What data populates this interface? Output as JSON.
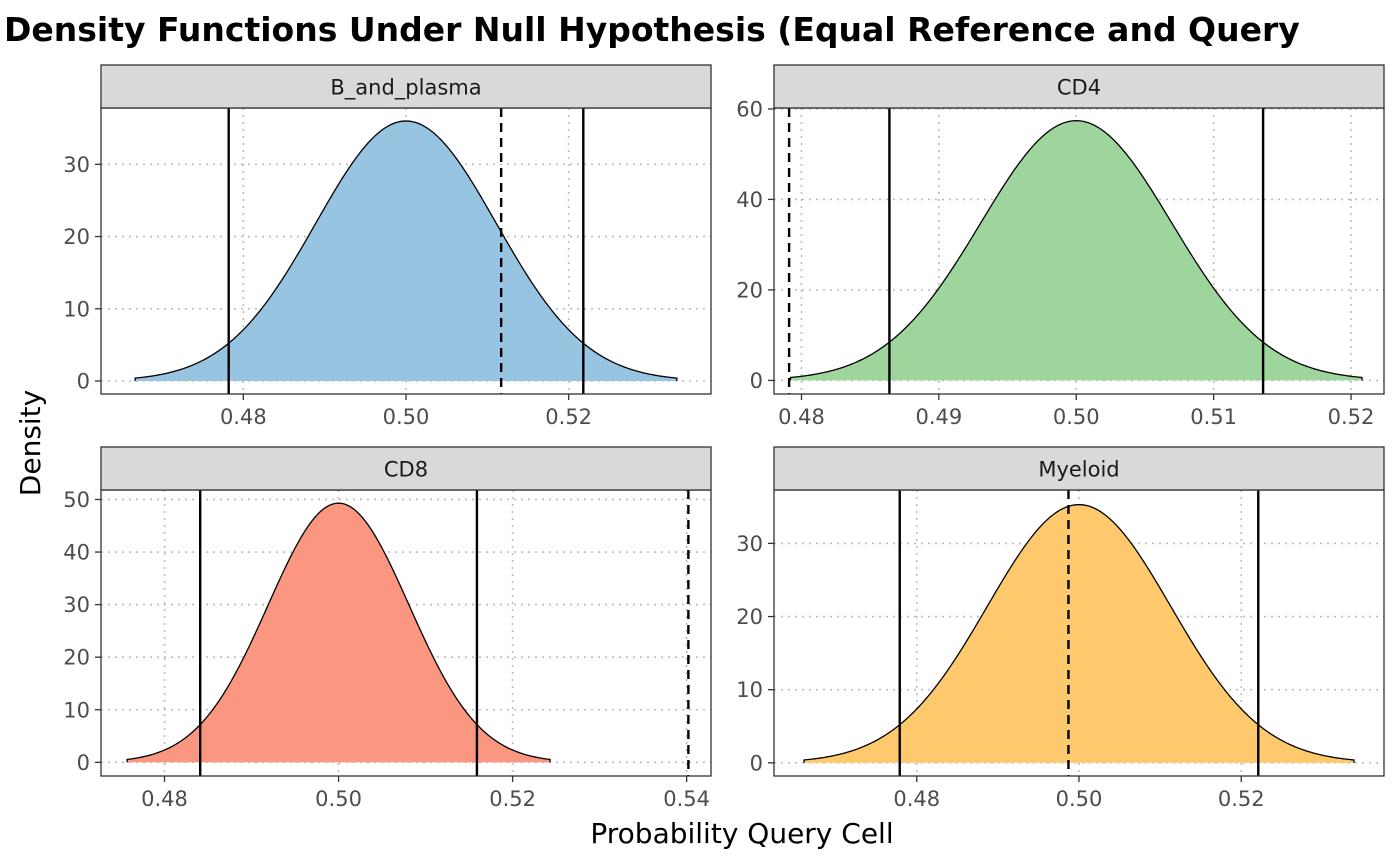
{
  "title": "Density Functions Under Null Hypothesis (Equal Reference and Query",
  "xlabel": "Probability Query Cell",
  "ylabel": "Density",
  "chart_data": [
    {
      "type": "area",
      "panel": "B_and_plasma",
      "fill_color": "#96c4e1",
      "distribution": {
        "mean": 0.5,
        "sd": 0.0111,
        "x_range": [
          0.4667,
          0.5333
        ]
      },
      "peak_density": 36,
      "xlim": [
        0.4625,
        0.5375
      ],
      "ylim": [
        -1.8,
        37.8
      ],
      "x_ticks": [
        0.48,
        0.5,
        0.52
      ],
      "x_tick_labels": [
        "0.48",
        "0.50",
        "0.52"
      ],
      "y_ticks": [
        0,
        10,
        20,
        30
      ],
      "y_tick_labels": [
        "0",
        "10",
        "20",
        "30"
      ],
      "solid_lines": [
        0.4782,
        0.5218
      ],
      "dashed_lines": [
        0.5117
      ]
    },
    {
      "type": "area",
      "panel": "CD4",
      "fill_color": "#9ed59c",
      "distribution": {
        "mean": 0.5,
        "sd": 0.00695,
        "x_range": [
          0.4792,
          0.5208
        ]
      },
      "peak_density": 57.4,
      "xlim": [
        0.478,
        0.5224
      ],
      "ylim": [
        -3.0,
        60.2
      ],
      "x_ticks": [
        0.48,
        0.49,
        0.5,
        0.51,
        0.52
      ],
      "x_tick_labels": [
        "0.48",
        "0.49",
        "0.50",
        "0.51",
        "0.52"
      ],
      "y_ticks": [
        0,
        20,
        40,
        60
      ],
      "y_tick_labels": [
        "0",
        "20",
        "40",
        "60"
      ],
      "solid_lines": [
        0.4864,
        0.5136
      ],
      "dashed_lines": [
        0.4791
      ]
    },
    {
      "type": "area",
      "panel": "CD8",
      "fill_color": "#fb9781",
      "distribution": {
        "mean": 0.5,
        "sd": 0.0081,
        "x_range": [
          0.4757,
          0.5243
        ]
      },
      "peak_density": 49.3,
      "xlim": [
        0.4727,
        0.5428
      ],
      "ylim": [
        -2.6,
        51.8
      ],
      "x_ticks": [
        0.48,
        0.5,
        0.52,
        0.54
      ],
      "x_tick_labels": [
        "0.48",
        "0.50",
        "0.52",
        "0.54"
      ],
      "y_ticks": [
        0,
        10,
        20,
        30,
        40,
        50
      ],
      "y_tick_labels": [
        "0",
        "10",
        "20",
        "30",
        "40",
        "50"
      ],
      "solid_lines": [
        0.4841,
        0.5159
      ],
      "dashed_lines": [
        0.5402
      ]
    },
    {
      "type": "area",
      "panel": "Myeloid",
      "fill_color": "#fec96d",
      "distribution": {
        "mean": 0.5,
        "sd": 0.0113,
        "x_range": [
          0.4661,
          0.5339
        ]
      },
      "peak_density": 35.3,
      "xlim": [
        0.4624,
        0.5376
      ],
      "ylim": [
        -1.8,
        37.3
      ],
      "x_ticks": [
        0.48,
        0.5,
        0.52
      ],
      "x_tick_labels": [
        "0.48",
        "0.50",
        "0.52"
      ],
      "y_ticks": [
        0,
        10,
        20,
        30
      ],
      "y_tick_labels": [
        "0",
        "10",
        "20",
        "30"
      ],
      "solid_lines": [
        0.4779,
        0.5221
      ],
      "dashed_lines": [
        0.4987
      ]
    }
  ]
}
